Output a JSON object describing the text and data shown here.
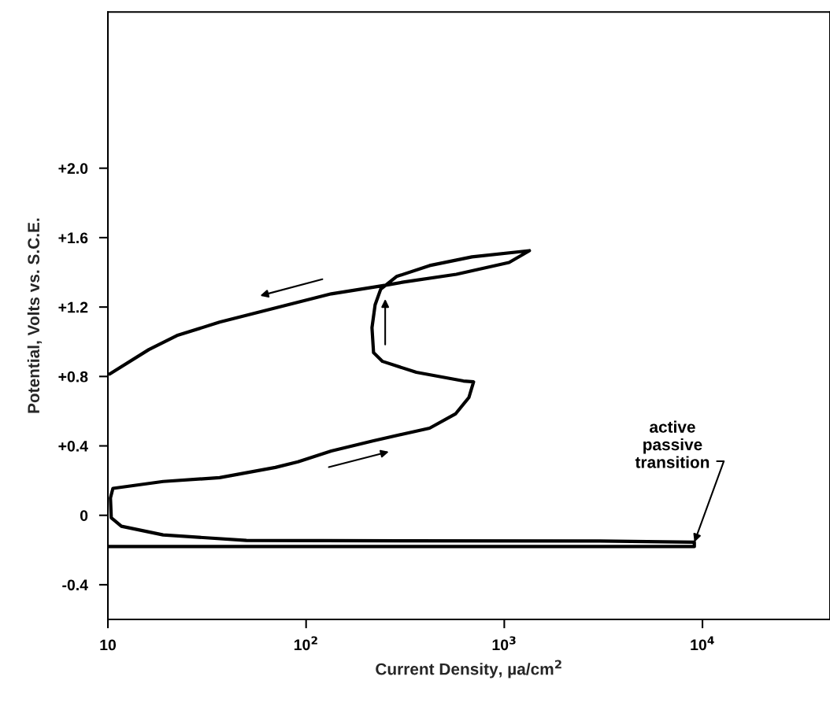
{
  "chart_data": {
    "type": "line",
    "xlabel": "Current Density, µa/cm$^{2}$",
    "ylabel": "Potential, Volts vs. S.C.E.",
    "log": "x",
    "xlim": [
      10,
      44000
    ],
    "xticks": [
      10,
      {
        "value": 100,
        "label": "10$^{2}$"
      },
      {
        "value": 1000,
        "label": "10$^{3}$"
      },
      {
        "value": 10000,
        "label": "10$^{4}$"
      }
    ],
    "ylim": [
      -0.6,
      2.9
    ],
    "yticks": [
      {
        "value": -0.4,
        "label": "-0.4"
      },
      0,
      {
        "value": 0.4,
        "label": "+0.4"
      },
      {
        "value": 0.8,
        "label": "+0.8"
      },
      {
        "value": 1.2,
        "label": "+1.2"
      },
      {
        "value": 1.6,
        "label": "+1.6"
      },
      {
        "value": 2.0,
        "label": "+2.0"
      }
    ],
    "grid": false,
    "marker": "none",
    "line_style": "solid",
    "series": [
      {
        "color": "#000000",
        "x": [
          10,
          9100,
          9100,
          3000,
          300,
          50,
          19,
          11.7,
          10.4,
          10.3,
          10.6,
          19,
          36.6,
          70,
          91,
          134,
          219,
          420,
          567,
          663,
          700,
          622,
          360,
          243,
          219,
          215,
          223,
          238,
          286,
          420,
          687,
          1340,
          1057,
          573,
          310,
          252,
          134,
          70,
          36.6,
          22.3,
          16.1,
          10.2
        ],
        "values": [
          -0.18,
          -0.18,
          -0.155,
          -0.148,
          -0.147,
          -0.145,
          -0.113,
          -0.063,
          -0.014,
          0.1,
          0.155,
          0.195,
          0.217,
          0.276,
          0.308,
          0.371,
          0.43,
          0.502,
          0.584,
          0.679,
          0.769,
          0.774,
          0.824,
          0.887,
          0.937,
          1.081,
          1.213,
          1.303,
          1.376,
          1.439,
          1.489,
          1.525,
          1.457,
          1.389,
          1.344,
          1.326,
          1.276,
          1.195,
          1.113,
          1.036,
          0.955,
          0.814
        ]
      }
    ],
    "annotations": [
      {
        "text": "active\npassive\ntransition",
        "x": 9100,
        "y": -0.155
      }
    ]
  }
}
